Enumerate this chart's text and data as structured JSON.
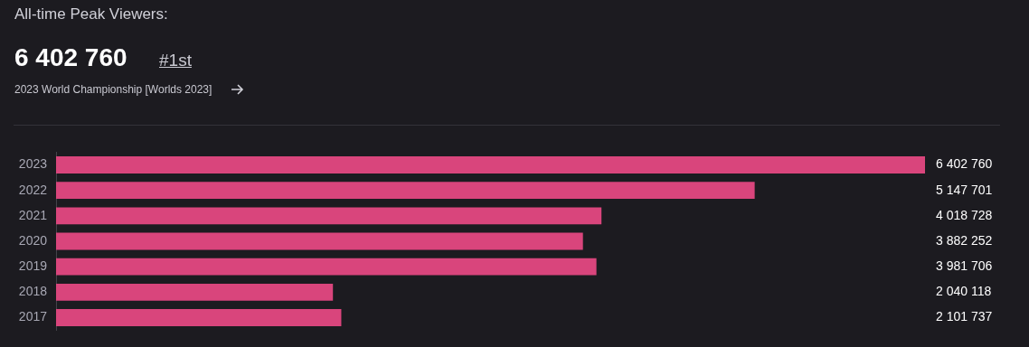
{
  "chart_data": {
    "type": "bar",
    "orientation": "horizontal",
    "title": "All-time Peak Viewers:",
    "annotations": [
      "6 402 760",
      "#1st",
      "2023 World Championship [Worlds 2023]"
    ],
    "categories": [
      "2023",
      "2022",
      "2021",
      "2020",
      "2019",
      "2018",
      "2017"
    ],
    "values": [
      6402760,
      5147701,
      4018728,
      3882252,
      3981706,
      2040118,
      2101737
    ],
    "value_labels": [
      "6 402 760",
      "5 147 701",
      "4 018 728",
      "3 882 252",
      "3 981 706",
      "2 040 118",
      "2 101 737"
    ],
    "color": "#d9457c",
    "xlim": [
      0,
      6402760
    ],
    "tick_labels": "y",
    "legend": false
  }
}
